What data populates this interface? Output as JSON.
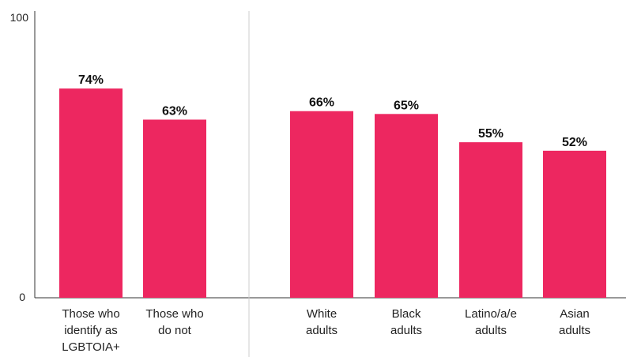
{
  "chart_data": {
    "type": "bar",
    "categories": [
      [
        "Those who",
        "identify as",
        "LGBTOIA+"
      ],
      [
        "Those who",
        "do not"
      ],
      [
        "White",
        "adults"
      ],
      [
        "Black",
        "adults"
      ],
      [
        "Latino/a/e",
        "adults"
      ],
      [
        "Asian",
        "adults"
      ]
    ],
    "values": [
      74,
      63,
      66,
      65,
      55,
      52
    ],
    "value_labels": [
      "74%",
      "63%",
      "66%",
      "65%",
      "55%",
      "52%"
    ],
    "groups": [
      [
        0,
        1
      ],
      [
        2,
        3,
        4,
        5
      ]
    ],
    "ylim": [
      0,
      100
    ],
    "y_ticks": [
      "0",
      "100"
    ],
    "title": "",
    "xlabel": "",
    "ylabel": "",
    "grid": false,
    "bar_color": "#ed2760",
    "axis_color": "#333333",
    "divider_color": "#cccccc"
  }
}
